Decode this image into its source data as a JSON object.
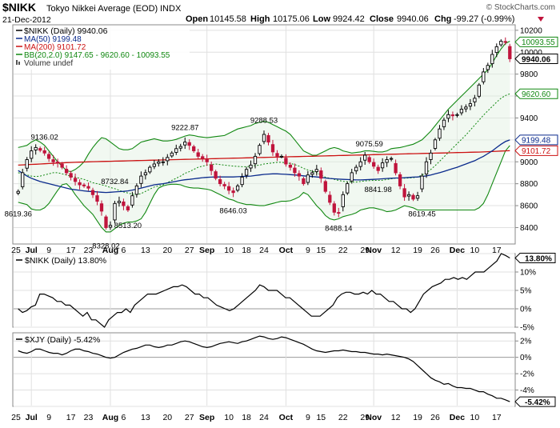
{
  "header": {
    "symbol": "$NIKK",
    "name": "Tokyo Nikkei Average (EOD)",
    "exchange": "INDX",
    "date": "21-Dec-2012",
    "watermark": "© StockCharts.com",
    "open_label": "Open",
    "open": "10145.58",
    "high_label": "High",
    "high": "10175.06",
    "low_label": "Low",
    "low": "9924.42",
    "close_label": "Close",
    "close": "9940.06",
    "chg_label": "Chg",
    "chg": "-99.27 (-0.99%)"
  },
  "legend": {
    "main": "$NIKK (Daily) 9940.06",
    "ma50": "MA(50) 9199.48",
    "ma200": "MA(200) 9101.72",
    "bb": "BB(20,2.0) 9147.65 - 9620.60 - 10093.55",
    "volume": "Volume undef"
  },
  "panel2": {
    "legend": "$NIKK (Daily) 13.80%",
    "last_badge": "13.80%"
  },
  "panel3": {
    "legend": "$XJY (Daily) -5.42%",
    "last_badge": "-5.42%"
  },
  "x_axis": {
    "labels": [
      {
        "i": -0.5,
        "t": "25",
        "bold": false
      },
      {
        "i": 3,
        "t": "Jul",
        "bold": true
      },
      {
        "i": 7,
        "t": "9",
        "bold": false
      },
      {
        "i": 12,
        "t": "17",
        "bold": false
      },
      {
        "i": 16,
        "t": "23",
        "bold": false
      },
      {
        "i": 21,
        "t": "Aug",
        "bold": true
      },
      {
        "i": 24,
        "t": "6",
        "bold": false
      },
      {
        "i": 29,
        "t": "13",
        "bold": false
      },
      {
        "i": 34,
        "t": "20",
        "bold": false
      },
      {
        "i": 39,
        "t": "27",
        "bold": false
      },
      {
        "i": 43,
        "t": "Sep",
        "bold": true
      },
      {
        "i": 48,
        "t": "10",
        "bold": false
      },
      {
        "i": 52,
        "t": "18",
        "bold": false
      },
      {
        "i": 56,
        "t": "24",
        "bold": false
      },
      {
        "i": 61,
        "t": "Oct",
        "bold": true
      },
      {
        "i": 66,
        "t": "9",
        "bold": false
      },
      {
        "i": 69,
        "t": "15",
        "bold": false
      },
      {
        "i": 74,
        "t": "22",
        "bold": false
      },
      {
        "i": 79,
        "t": "29",
        "bold": false
      },
      {
        "i": 81,
        "t": "Nov",
        "bold": true
      },
      {
        "i": 86,
        "t": "12",
        "bold": false
      },
      {
        "i": 91,
        "t": "19",
        "bold": false
      },
      {
        "i": 95,
        "t": "26",
        "bold": false
      },
      {
        "i": 100,
        "t": "Dec",
        "bold": true
      },
      {
        "i": 104,
        "t": "10",
        "bold": false
      },
      {
        "i": 109,
        "t": "17",
        "bold": false
      }
    ]
  },
  "colors": {
    "up": "#000000",
    "down": "#c0143c",
    "ma50": "#0a2a8c",
    "ma200": "#cc1111",
    "bb": "#118811",
    "grid": "#e0e0e0",
    "badge_main": "#000000",
    "badge_ma50": "#0a2a8c",
    "badge_ma200": "#cc1111",
    "badge_bb": "#118811"
  },
  "chart_data": [
    {
      "type": "candlestick",
      "title": "$NIKK Tokyo Nikkei Average (EOD) INDX",
      "ylim": [
        8250,
        10250
      ],
      "y_ticks": [
        8400,
        8600,
        8800,
        9000,
        9200,
        9400,
        9600,
        9800,
        10000,
        10200
      ],
      "right_badges": [
        {
          "value": 10093.55,
          "label": "10093.55",
          "key": "bb"
        },
        {
          "value": 9940.06,
          "label": "9940.06",
          "key": "main"
        },
        {
          "value": 9620.6,
          "label": "9620.60",
          "key": "bb"
        },
        {
          "value": 9199.48,
          "label": "9199.48",
          "key": "ma50"
        },
        {
          "value": 9101.72,
          "label": "9101.72",
          "key": "ma200"
        }
      ],
      "annotations": [
        {
          "i": 0,
          "value": 8619.36,
          "label": "8619.36",
          "pos": "below"
        },
        {
          "i": 6,
          "value": 9136.02,
          "label": "9136.02",
          "pos": "above"
        },
        {
          "i": 20,
          "value": 8328.02,
          "label": "8328.02",
          "pos": "below"
        },
        {
          "i": 22,
          "value": 8732.84,
          "label": "8732.84",
          "pos": "above"
        },
        {
          "i": 25,
          "value": 8513.2,
          "label": "8513.20",
          "pos": "below"
        },
        {
          "i": 38,
          "value": 9222.87,
          "label": "9222.87",
          "pos": "above"
        },
        {
          "i": 49,
          "value": 8646.03,
          "label": "8646.03",
          "pos": "below"
        },
        {
          "i": 56,
          "value": 9288.53,
          "label": "9288.53",
          "pos": "above"
        },
        {
          "i": 73,
          "value": 8488.14,
          "label": "8488.14",
          "pos": "below"
        },
        {
          "i": 80,
          "value": 9075.59,
          "label": "9075.59",
          "pos": "above"
        },
        {
          "i": 82,
          "value": 8841.98,
          "label": "8841.98",
          "pos": "below"
        },
        {
          "i": 92,
          "value": 8619.45,
          "label": "8619.45",
          "pos": "below"
        }
      ],
      "close": [
        8730,
        8900,
        9020,
        9100,
        9130,
        9105,
        9080,
        9030,
        9000,
        8990,
        8950,
        8900,
        8860,
        8820,
        8790,
        8780,
        8760,
        8700,
        8640,
        8550,
        8400,
        8420,
        8620,
        8640,
        8600,
        8560,
        8690,
        8780,
        8870,
        8900,
        8950,
        8980,
        9000,
        9000,
        9040,
        9080,
        9120,
        9140,
        9180,
        9150,
        9100,
        9050,
        9030,
        9000,
        8920,
        8850,
        8800,
        8780,
        8740,
        8720,
        8780,
        8860,
        8930,
        8970,
        9050,
        9150,
        9250,
        9180,
        9090,
        9050,
        9050,
        8980,
        8950,
        8900,
        8870,
        8800,
        8880,
        8900,
        8930,
        8850,
        8730,
        8630,
        8540,
        8530,
        8700,
        8800,
        8900,
        8950,
        9000,
        9060,
        9000,
        8960,
        8920,
        8990,
        9020,
        9030,
        8900,
        8780,
        8680,
        8700,
        8660,
        8690,
        8870,
        9000,
        9080,
        9200,
        9300,
        9380,
        9430,
        9420,
        9430,
        9480,
        9500,
        9530,
        9580,
        9700,
        9820,
        9880,
        9980,
        10050,
        10100,
        10090,
        9940
      ],
      "bb_upper": [
        9130,
        9140,
        9150,
        9180,
        9200,
        9180,
        9150,
        9100,
        9050,
        9000,
        8960,
        8920,
        8910,
        8930,
        8960,
        9000,
        9070,
        9130,
        9180,
        9220,
        9210,
        9180,
        9150,
        9120,
        9110,
        9110,
        9120,
        9150,
        9180,
        9190,
        9200,
        9210,
        9200,
        9190,
        9190,
        9195,
        9205,
        9220,
        9235,
        9245,
        9240,
        9230,
        9225,
        9220,
        9225,
        9230,
        9235,
        9240,
        9260,
        9280,
        9300,
        9310,
        9320,
        9330,
        9350,
        9360,
        9370,
        9360,
        9340,
        9320,
        9300,
        9280,
        9250,
        9200,
        9150,
        9100,
        9080,
        9060,
        9060,
        9080,
        9100,
        9120,
        9130,
        9120,
        9100,
        9090,
        9080,
        9085,
        9090,
        9100,
        9100,
        9095,
        9090,
        9090,
        9100,
        9120,
        9125,
        9130,
        9140,
        9150,
        9160,
        9180,
        9200,
        9240,
        9280,
        9330,
        9380,
        9430,
        9480,
        9520,
        9560,
        9600,
        9640,
        9680,
        9720,
        9760,
        9800,
        9840,
        9900,
        9970,
        10030,
        10080,
        10100
      ],
      "bb_middle": [
        8900,
        8890,
        8880,
        8870,
        8865,
        8870,
        8880,
        8890,
        8900,
        8900,
        8890,
        8880,
        8870,
        8860,
        8850,
        8840,
        8825,
        8810,
        8800,
        8790,
        8780,
        8765,
        8755,
        8740,
        8725,
        8715,
        8705,
        8700,
        8710,
        8730,
        8750,
        8770,
        8780,
        8790,
        8810,
        8830,
        8850,
        8870,
        8895,
        8910,
        8930,
        8950,
        8960,
        8970,
        8975,
        8980,
        8975,
        8970,
        8965,
        8960,
        8958,
        8955,
        8955,
        8960,
        8965,
        8970,
        8980,
        8985,
        8990,
        8995,
        8995,
        8990,
        8985,
        8975,
        8960,
        8940,
        8925,
        8915,
        8900,
        8880,
        8860,
        8850,
        8840,
        8830,
        8822,
        8818,
        8815,
        8815,
        8820,
        8825,
        8828,
        8830,
        8830,
        8832,
        8838,
        8845,
        8850,
        8850,
        8850,
        8852,
        8855,
        8860,
        8880,
        8900,
        8930,
        8965,
        9005,
        9045,
        9085,
        9125,
        9165,
        9205,
        9245,
        9290,
        9335,
        9380,
        9425,
        9465,
        9505,
        9545,
        9580,
        9605,
        9620
      ],
      "bb_lower": [
        8630,
        8620,
        8610,
        8570,
        8560,
        8560,
        8580,
        8620,
        8680,
        8740,
        8790,
        8800,
        8760,
        8700,
        8650,
        8600,
        8560,
        8520,
        8460,
        8400,
        8360,
        8360,
        8390,
        8420,
        8440,
        8450,
        8450,
        8460,
        8480,
        8540,
        8620,
        8700,
        8760,
        8780,
        8790,
        8795,
        8795,
        8790,
        8775,
        8765,
        8760,
        8760,
        8755,
        8750,
        8740,
        8720,
        8700,
        8680,
        8660,
        8650,
        8630,
        8620,
        8610,
        8610,
        8605,
        8600,
        8600,
        8610,
        8620,
        8630,
        8640,
        8640,
        8645,
        8660,
        8680,
        8720,
        8700,
        8650,
        8600,
        8560,
        8510,
        8480,
        8470,
        8480,
        8500,
        8510,
        8520,
        8535,
        8560,
        8570,
        8580,
        8580,
        8570,
        8560,
        8545,
        8550,
        8560,
        8580,
        8600,
        8590,
        8580,
        8560,
        8560,
        8560,
        8560,
        8560,
        8560,
        8560,
        8560,
        8560,
        8560,
        8560,
        8560,
        8560,
        8560,
        8580,
        8620,
        8700,
        8800,
        8900,
        9000,
        9100,
        9147.65
      ],
      "ma50": [
        8920,
        8895,
        8870,
        8850,
        8835,
        8820,
        8810,
        8800,
        8790,
        8780,
        8770,
        8760,
        8750,
        8745,
        8740,
        8735,
        8730,
        8728,
        8725,
        8722,
        8720,
        8722,
        8725,
        8728,
        8730,
        8735,
        8742,
        8750,
        8760,
        8770,
        8780,
        8790,
        8795,
        8800,
        8808,
        8815,
        8822,
        8830,
        8836,
        8840,
        8845,
        8850,
        8855,
        8858,
        8860,
        8862,
        8862,
        8862,
        8862,
        8862,
        8864,
        8866,
        8868,
        8870,
        8875,
        8880,
        8885,
        8888,
        8890,
        8890,
        8888,
        8886,
        8883,
        8880,
        8876,
        8872,
        8868,
        8865,
        8862,
        8858,
        8852,
        8848,
        8845,
        8842,
        8840,
        8838,
        8836,
        8835,
        8835,
        8836,
        8838,
        8840,
        8842,
        8845,
        8848,
        8850,
        8852,
        8853,
        8855,
        8857,
        8860,
        8862,
        8866,
        8872,
        8880,
        8890,
        8900,
        8912,
        8925,
        8938,
        8950,
        8965,
        8980,
        8995,
        9010,
        9030,
        9050,
        9075,
        9100,
        9130,
        9160,
        9185,
        9199.48
      ],
      "ma200": [
        8970,
        8972,
        8974,
        8976,
        8978,
        8980,
        8982,
        8984,
        8986,
        8988,
        8990,
        8992,
        8994,
        8995,
        8997,
        8998,
        9000,
        9001,
        9002,
        9003,
        9004,
        9005,
        9006,
        9007,
        9008,
        9009,
        9010,
        9011,
        9012,
        9013,
        9014,
        9015,
        9016,
        9017,
        9018,
        9019,
        9020,
        9021,
        9022,
        9023,
        9024,
        9025,
        9026,
        9027,
        9028,
        9029,
        9030,
        9031,
        9032,
        9033,
        9034,
        9035,
        9036,
        9037,
        9038,
        9039,
        9040,
        9041,
        9042,
        9043,
        9044,
        9045,
        9046,
        9047,
        9048,
        9049,
        9050,
        9051,
        9052,
        9053,
        9054,
        9055,
        9056,
        9057,
        9058,
        9059,
        9060,
        9061,
        9062,
        9063,
        9064,
        9065,
        9066,
        9067,
        9068,
        9069,
        9070,
        9071,
        9072,
        9073,
        9074,
        9075,
        9076,
        9077,
        9078,
        9079,
        9080,
        9081,
        9082,
        9083,
        9084,
        9085,
        9086,
        9087,
        9088,
        9089,
        9090,
        9092,
        9094,
        9096,
        9098,
        9100,
        9101.72
      ]
    },
    {
      "type": "line",
      "title": "$NIKK (Daily) 13.80%",
      "ylim": [
        -5,
        15
      ],
      "y_ticks": [
        -5,
        0,
        5,
        10,
        15
      ],
      "y_tick_labels": [
        "-5%",
        "0%",
        "5%",
        "10%",
        ""
      ],
      "values": [
        0,
        -1,
        -0.5,
        0.5,
        1,
        4,
        4,
        3.5,
        3,
        2,
        2,
        1,
        1,
        0,
        -1,
        -2,
        -1,
        -3,
        -3,
        -4,
        -5,
        -3,
        -2,
        -1,
        -1,
        0,
        -1,
        1,
        2,
        3,
        4,
        4,
        4,
        4.5,
        5,
        5.5,
        6,
        6,
        6.5,
        6,
        5,
        4,
        4,
        3,
        3,
        2,
        1,
        0.5,
        0,
        -0.5,
        0,
        1,
        2,
        3,
        4,
        5,
        6.5,
        6,
        5,
        5,
        5,
        4,
        3,
        3,
        2,
        1,
        0,
        -1,
        -2,
        -2,
        -2,
        -1,
        0,
        1,
        3,
        4,
        4.5,
        4.5,
        4,
        4,
        4.5,
        4,
        5,
        4,
        4,
        3,
        2,
        2,
        1,
        0,
        0,
        -1,
        0,
        2,
        4,
        5,
        6,
        6.5,
        7,
        8,
        8,
        8.5,
        8,
        8.5,
        8,
        9,
        10,
        10,
        10,
        11,
        12,
        13,
        15,
        14.5,
        13.8
      ]
    },
    {
      "type": "line",
      "title": "$XJY (Daily) -5.42%",
      "ylim": [
        -6,
        3
      ],
      "y_ticks": [
        -6,
        -4,
        -2,
        0,
        2
      ],
      "y_tick_labels": [
        "",
        "-4%",
        "-2%",
        "0%",
        "2%"
      ],
      "values": [
        0.8,
        0.6,
        0.5,
        0.7,
        1,
        1,
        0.8,
        0.6,
        0.5,
        0.5,
        0.3,
        0.5,
        0.8,
        1,
        1,
        0.8,
        0.7,
        0.5,
        0.4,
        0.2,
        0,
        -0.1,
        0,
        0.3,
        0.6,
        0.8,
        1,
        1.1,
        1.3,
        1.5,
        1.5,
        1.3,
        1.2,
        1.3,
        1.5,
        1.5,
        1.7,
        1.9,
        2,
        1.9,
        1.7,
        1.5,
        1.3,
        1.2,
        1.3,
        1.5,
        1.7,
        1.8,
        1.9,
        1.8,
        1.7,
        1.9,
        2,
        2.2,
        2.4,
        2.6,
        2.5,
        2.3,
        2.2,
        2.3,
        2.5,
        2.4,
        2.2,
        2,
        1.8,
        1.6,
        1.3,
        1,
        0.8,
        0.7,
        0.6,
        0.7,
        0.8,
        0.8,
        0.9,
        0.8,
        0.7,
        0.7,
        0.6,
        0.6,
        0.5,
        0.4,
        0.4,
        0.3,
        0.4,
        0.3,
        0.2,
        0.1,
        0,
        -0.2,
        -0.5,
        -1,
        -1.5,
        -2,
        -2.5,
        -2.8,
        -3,
        -3.3,
        -3.2,
        -3.5,
        -3.7,
        -3.7,
        -3.8,
        -3.8,
        -4,
        -4.2,
        -4.2,
        -4.5,
        -4.7,
        -5,
        -5,
        -5.2,
        -5.42
      ]
    }
  ]
}
